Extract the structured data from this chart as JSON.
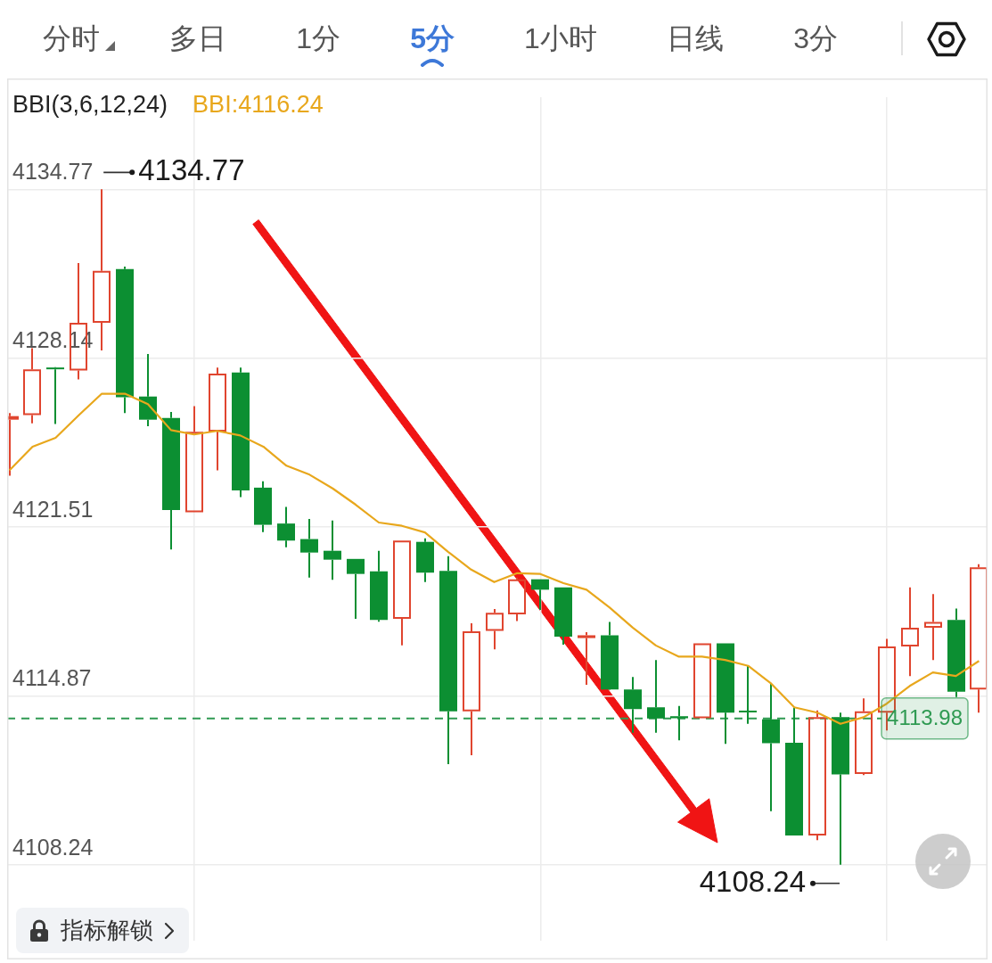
{
  "chart_data": {
    "type": "candlestick",
    "categories": [
      null,
      null,
      null,
      null,
      null,
      null,
      null,
      null,
      null,
      null,
      null,
      null,
      null,
      null,
      null,
      null,
      null,
      null,
      null,
      null,
      null,
      null,
      null,
      null,
      null,
      null,
      null,
      null,
      null,
      null,
      null,
      null,
      null,
      null,
      null,
      null,
      null,
      null,
      null,
      null,
      null,
      null,
      null
    ],
    "ohlc": [
      [
        4125.72,
        4125.98,
        4123.52,
        4125.86
      ],
      [
        4125.9,
        4128.53,
        4125.58,
        4127.7
      ],
      [
        4127.76,
        4127.78,
        4125.55,
        4127.71
      ],
      [
        4127.65,
        4131.87,
        4127.3,
        4129.53
      ],
      [
        4129.53,
        4134.77,
        4128.44,
        4131.57
      ],
      [
        4131.64,
        4131.73,
        4125.98,
        4126.6
      ],
      [
        4126.63,
        4128.3,
        4125.46,
        4125.72
      ],
      [
        4125.79,
        4126.02,
        4120.62,
        4122.17
      ],
      [
        4122.08,
        4126.25,
        4122.08,
        4125.24
      ],
      [
        4125.25,
        4127.77,
        4123.73,
        4127.53
      ],
      [
        4127.57,
        4127.77,
        4122.68,
        4122.94
      ],
      [
        4123.05,
        4123.3,
        4121.3,
        4121.59
      ],
      [
        4121.64,
        4122.29,
        4120.71,
        4120.97
      ],
      [
        4121.03,
        4121.82,
        4119.52,
        4120.5
      ],
      [
        4120.57,
        4121.76,
        4119.43,
        4120.22
      ],
      [
        4120.25,
        4120.25,
        4117.9,
        4119.66
      ],
      [
        4119.76,
        4120.57,
        4117.78,
        4117.85
      ],
      [
        4117.9,
        4120.97,
        4116.85,
        4120.97
      ],
      [
        4120.92,
        4121.06,
        4119.34,
        4119.71
      ],
      [
        4119.78,
        4120.36,
        4112.19,
        4114.26
      ],
      [
        4114.26,
        4117.72,
        4112.54,
        4117.41
      ],
      [
        4117.42,
        4118.28,
        4116.7,
        4118.13
      ],
      [
        4118.07,
        4119.52,
        4117.81,
        4119.45
      ],
      [
        4119.45,
        4119.45,
        4118.25,
        4119.04
      ],
      [
        4119.13,
        4119.13,
        4116.88,
        4117.2
      ],
      [
        4117.14,
        4117.37,
        4115.3,
        4117.25
      ],
      [
        4117.25,
        4117.77,
        4115.1,
        4115.12
      ],
      [
        4115.12,
        4115.61,
        4113.42,
        4114.35
      ],
      [
        4114.42,
        4116.28,
        4113.42,
        4113.98
      ],
      [
        4114.07,
        4114.47,
        4113.12,
        4113.99
      ],
      [
        4113.99,
        4116.93,
        4113.99,
        4116.93
      ],
      [
        4116.93,
        4116.93,
        4112.98,
        4114.21
      ],
      [
        4114.28,
        4116.05,
        4113.77,
        4114.23
      ],
      [
        4113.95,
        4115.35,
        4110.34,
        4113.01
      ],
      [
        4113.03,
        4114.42,
        4109.38,
        4109.38
      ],
      [
        4109.38,
        4114.3,
        4109.2,
        4114.03
      ],
      [
        4114.03,
        4114.21,
        4108.24,
        4111.78
      ],
      [
        4111.8,
        4114.77,
        4111.76,
        4114.26
      ],
      [
        4114.21,
        4117.11,
        4113.51,
        4116.81
      ],
      [
        4116.81,
        4119.13,
        4115.65,
        4117.55
      ],
      [
        4117.55,
        4118.87,
        4116.28,
        4117.77
      ],
      [
        4117.85,
        4118.3,
        4114.82,
        4115.03
      ],
      [
        4115.12,
        4120.04,
        4114.21,
        4119.92
      ]
    ],
    "colors": [
      "#e0452f",
      "#e0452f",
      "#0c8f32",
      "#e0452f",
      "#e0452f",
      "#0c8f32",
      "#0c8f32",
      "#0c8f32",
      "#e0452f",
      "#e0452f",
      "#0c8f32",
      "#0c8f32",
      "#0c8f32",
      "#0c8f32",
      "#0c8f32",
      "#0c8f32",
      "#0c8f32",
      "#e0452f",
      "#0c8f32",
      "#0c8f32",
      "#e0452f",
      "#e0452f",
      "#e0452f",
      "#0c8f32",
      "#0c8f32",
      "#e0452f",
      "#0c8f32",
      "#0c8f32",
      "#0c8f32",
      "#0c8f32",
      "#e0452f",
      "#0c8f32",
      "#0c8f32",
      "#0c8f32",
      "#0c8f32",
      "#e0452f",
      "#0c8f32",
      "#e0452f",
      "#e0452f",
      "#e0452f",
      "#e0452f",
      "#0c8f32",
      "#e0452f"
    ],
    "series": [
      {
        "type": "line",
        "name": "BBI:4116.24",
        "color": "#e8a71c",
        "values": [
          4123.73,
          4124.66,
          4125.01,
          4125.89,
          4126.74,
          4126.74,
          4126.33,
          4125.31,
          4125.14,
          4125.28,
          4125.1,
          4124.66,
          4123.91,
          4123.56,
          4123.02,
          4122.38,
          4121.68,
          4121.55,
          4121.29,
          4120.53,
          4119.83,
          4119.34,
          4119.69,
          4119.66,
          4119.3,
          4119.04,
          4118.34,
          4117.55,
          4116.85,
          4116.41,
          4116.41,
          4116.28,
          4116.05,
          4115.35,
          4114.42,
          4114.21,
          4113.77,
          4114.03,
          4114.56,
          4115.26,
          4115.79,
          4115.65,
          4116.24
        ]
      }
    ],
    "legend": "top left",
    "legend_title": "BBI(3,6,12,24)",
    "ylim": [
      4105.25,
      4138.39
    ],
    "yticks": [
      4108.24,
      4114.87,
      4121.51,
      4128.14,
      4134.77
    ],
    "grid": true,
    "tick_labels": "y",
    "ref_lines": [
      {
        "axis": "y",
        "value": 4113.98,
        "color": "#2f9a52",
        "line_style": "dashed"
      }
    ],
    "annotations": [
      "分时",
      "多日",
      "1分",
      "5分",
      "1小时",
      "日线",
      "3分",
      "4134.77",
      "4113.98",
      "4108.24",
      "指标解锁"
    ]
  }
}
